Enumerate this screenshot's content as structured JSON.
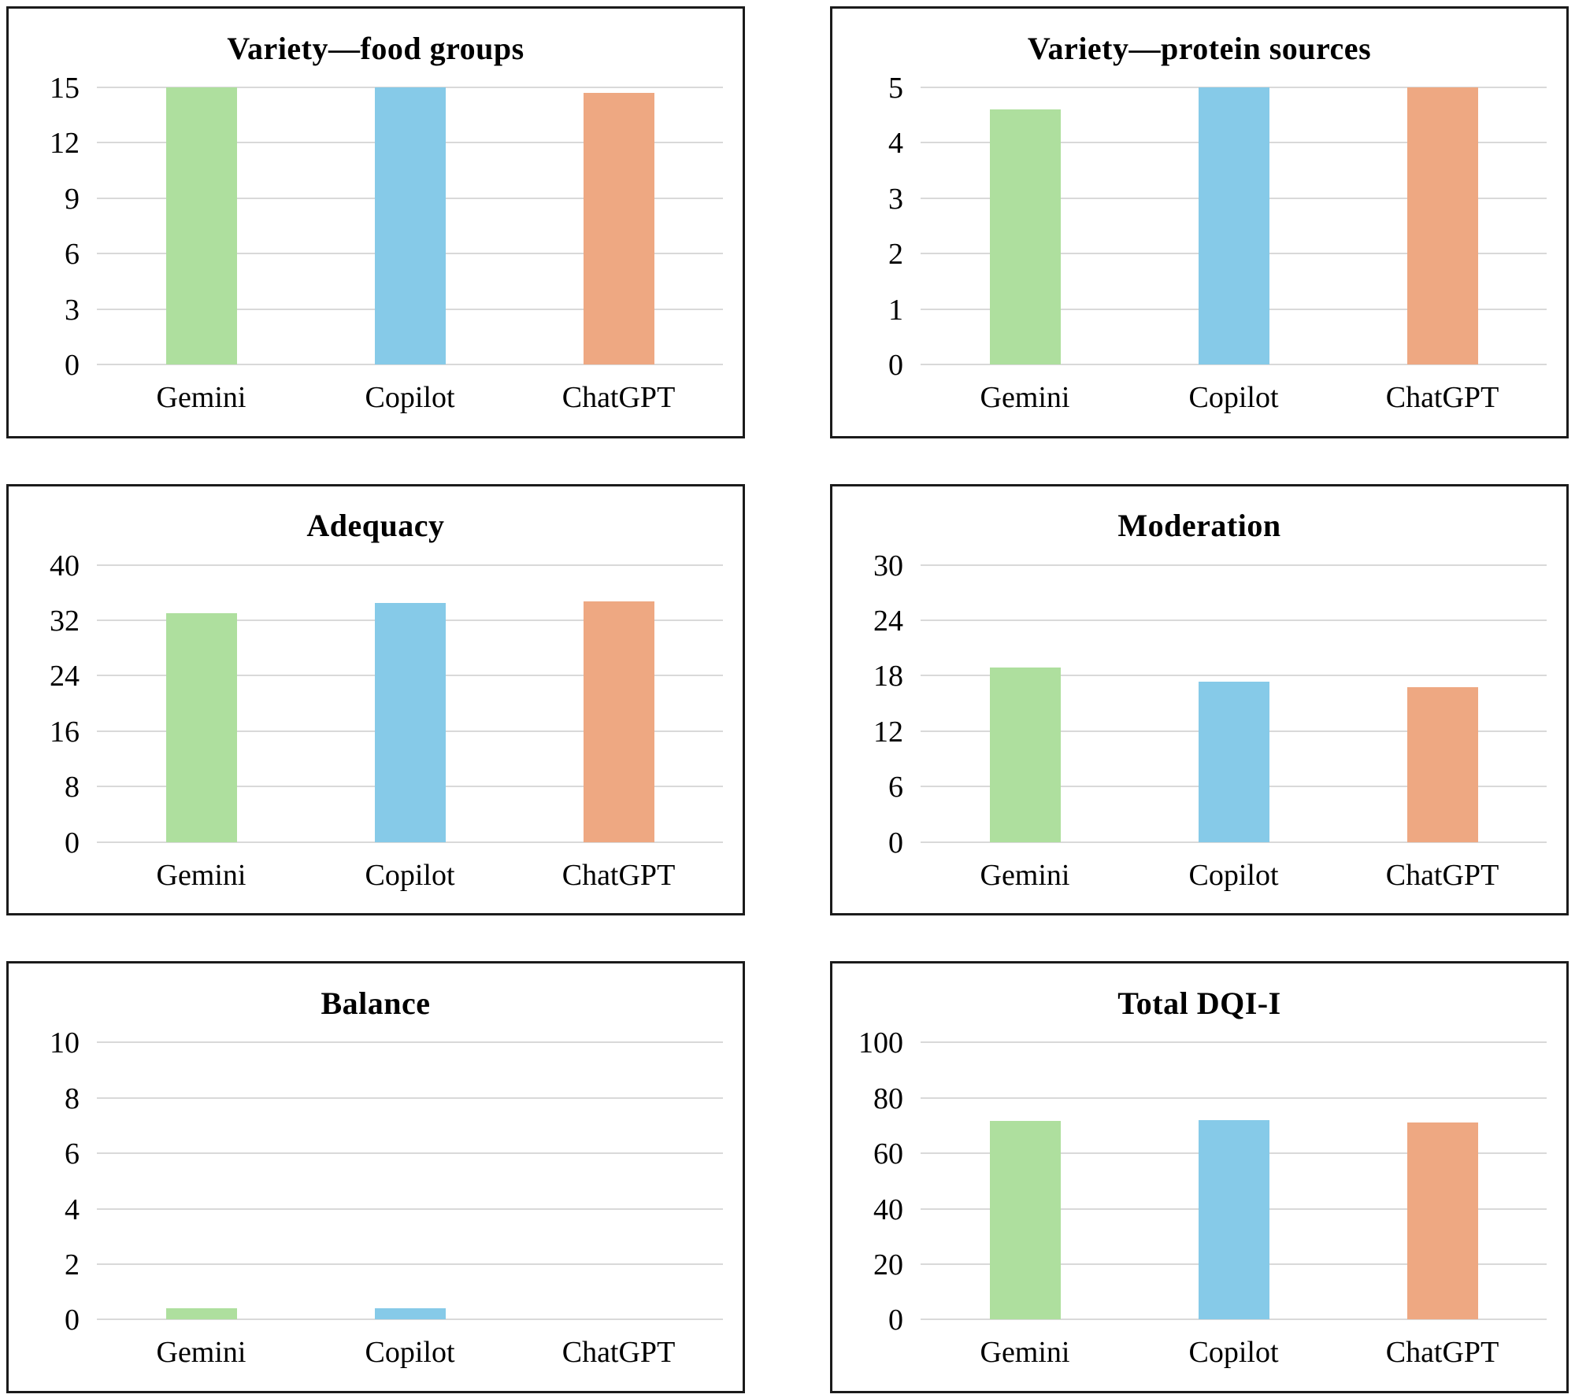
{
  "figure": {
    "background": "#ffffff",
    "panel_border_color": "#1b1b1b",
    "gridline_color": "#d9d9d9",
    "text_color": "#000000"
  },
  "bar_colors": [
    "#aedf9e",
    "#86cae8",
    "#eea882"
  ],
  "chart_data": [
    {
      "type": "bar",
      "title": "Variety—food groups",
      "categories": [
        "Gemini",
        "Copilot",
        "ChatGPT"
      ],
      "values": [
        15,
        15,
        14.7
      ],
      "ylim": [
        0,
        15
      ],
      "yticks": [
        0,
        3,
        6,
        9,
        12,
        15
      ],
      "grid": true,
      "legend": "none"
    },
    {
      "type": "bar",
      "title": "Variety—protein sources",
      "categories": [
        "Gemini",
        "Copilot",
        "ChatGPT"
      ],
      "values": [
        4.6,
        5,
        5
      ],
      "ylim": [
        0,
        5
      ],
      "yticks": [
        0,
        1,
        2,
        3,
        4,
        5
      ],
      "grid": true,
      "legend": "none"
    },
    {
      "type": "bar",
      "title": "Adequacy",
      "categories": [
        "Gemini",
        "Copilot",
        "ChatGPT"
      ],
      "values": [
        33,
        34.5,
        34.7
      ],
      "ylim": [
        0,
        40
      ],
      "yticks": [
        0,
        8,
        16,
        24,
        32,
        40
      ],
      "grid": true,
      "legend": "none"
    },
    {
      "type": "bar",
      "title": "Moderation",
      "categories": [
        "Gemini",
        "Copilot",
        "ChatGPT"
      ],
      "values": [
        18.9,
        17.4,
        16.8
      ],
      "ylim": [
        0,
        30
      ],
      "yticks": [
        0,
        6,
        12,
        18,
        24,
        30
      ],
      "grid": true,
      "legend": "none"
    },
    {
      "type": "bar",
      "title": "Balance",
      "categories": [
        "Gemini",
        "Copilot",
        "ChatGPT"
      ],
      "values": [
        0.4,
        0.4,
        0
      ],
      "ylim": [
        0,
        10
      ],
      "yticks": [
        0,
        2,
        4,
        6,
        8,
        10
      ],
      "grid": true,
      "legend": "none"
    },
    {
      "type": "bar",
      "title": "Total DQI-I",
      "categories": [
        "Gemini",
        "Copilot",
        "ChatGPT"
      ],
      "values": [
        71.6,
        72.1,
        71
      ],
      "ylim": [
        0,
        100
      ],
      "yticks": [
        0,
        20,
        40,
        60,
        80,
        100
      ],
      "grid": true,
      "legend": "none"
    }
  ]
}
